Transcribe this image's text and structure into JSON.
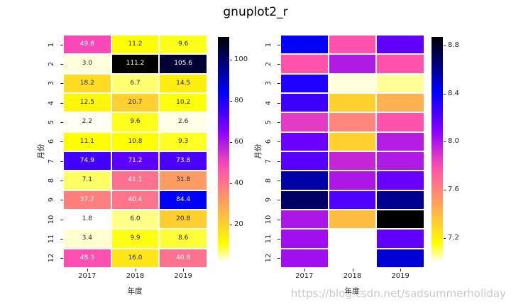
{
  "title": "gnuplot2_r",
  "watermark": "https://blog.csdn.net/sadsummerholiday",
  "chart_data": [
    {
      "type": "heatmap",
      "name": "annotated heatmap",
      "colormap": "gnuplot2_r",
      "xlabel": "年度",
      "ylabel": "月份",
      "x_ticks": [
        "2017",
        "2018",
        "2019"
      ],
      "y_ticks": [
        "1",
        "2",
        "3",
        "4",
        "5",
        "6",
        "7",
        "8",
        "9",
        "10",
        "11",
        "12"
      ],
      "vmin": 1.8,
      "vmax": 111.2,
      "annotated": true,
      "values": [
        [
          49.8,
          11.2,
          9.6
        ],
        [
          3.0,
          111.2,
          105.6
        ],
        [
          18.2,
          6.7,
          14.5
        ],
        [
          12.5,
          20.7,
          10.2
        ],
        [
          2.2,
          9.6,
          2.6
        ],
        [
          11.1,
          10.8,
          9.3
        ],
        [
          74.9,
          71.2,
          73.8
        ],
        [
          7.1,
          41.1,
          31.8
        ],
        [
          37.7,
          40.4,
          84.4
        ],
        [
          1.8,
          6.0,
          20.8
        ],
        [
          3.4,
          9.9,
          8.6
        ],
        [
          48.3,
          16.0,
          40.8
        ]
      ],
      "colorbar_ticks": [
        20,
        40,
        60,
        80,
        100
      ],
      "colorbar_tick_labels": [
        "20",
        "40",
        "60",
        "80",
        "100"
      ],
      "legend_position": "right-colorbar",
      "grid": false
    },
    {
      "type": "heatmap",
      "name": "plain heatmap (values estimated from cell colors; nulls are blank cells)",
      "colormap": "gnuplot2_r",
      "xlabel": "年度",
      "ylabel": "月份",
      "x_ticks": [
        "2017",
        "2018",
        "2019"
      ],
      "y_ticks": [
        "1",
        "2",
        "3",
        "4",
        "5",
        "6",
        "7",
        "8",
        "9",
        "10",
        "11",
        "12"
      ],
      "vmin": 7.0,
      "vmax": 8.87,
      "annotated": false,
      "values": [
        [
          8.41,
          7.78,
          8.18
        ],
        [
          7.78,
          7.99,
          7.78
        ],
        [
          8.33,
          7.02,
          7.06
        ],
        [
          8.26,
          7.32,
          7.44
        ],
        [
          7.87,
          7.6,
          7.78
        ],
        [
          8.15,
          7.32,
          7.98
        ],
        [
          8.2,
          7.94,
          7.99
        ],
        [
          8.56,
          8.0,
          8.16
        ],
        [
          8.69,
          8.21,
          8.61
        ],
        [
          8.0,
          7.4,
          8.87
        ],
        [
          8.03,
          null,
          8.18
        ],
        [
          8.03,
          null,
          8.48
        ]
      ],
      "colorbar_ticks": [
        7.2,
        7.6,
        8.0,
        8.4,
        8.8
      ],
      "colorbar_tick_labels": [
        "7.2",
        "7.6",
        "8.0",
        "8.4",
        "8.8"
      ],
      "legend_position": "right-colorbar",
      "grid": false
    }
  ]
}
